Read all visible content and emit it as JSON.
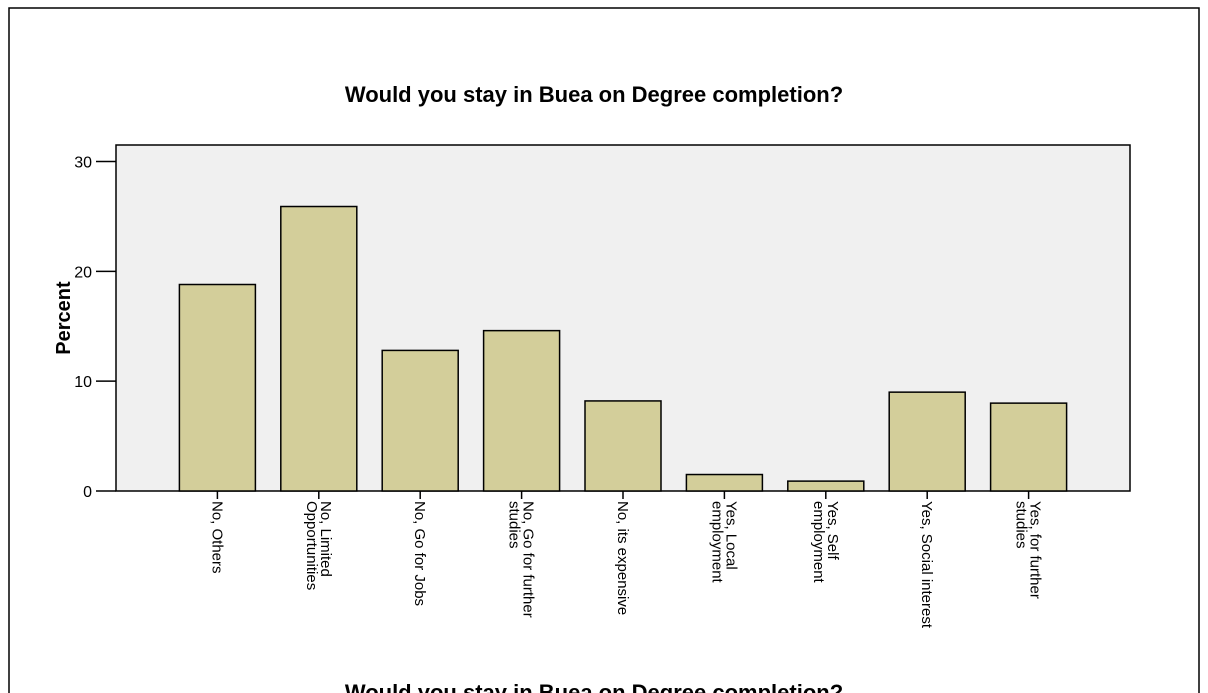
{
  "chart_data": {
    "type": "bar",
    "title": "Would you stay in Buea on Degree completion?",
    "y_label": "Percent",
    "x_label": "Would you stay in Buea on Degree completion?",
    "categories": [
      "No, Others",
      "No, Limited\nOpportunities",
      "No, Go for Jobs",
      "No, Go for further\nstudies",
      "No, its expensive",
      "Yes, Local\nemployment",
      "Yes, Self\nemployment",
      "Yes, Social interest",
      "Yes, for further\nstudies"
    ],
    "values": [
      18.8,
      25.9,
      12.8,
      14.6,
      8.2,
      1.5,
      0.9,
      9.0,
      8.0
    ],
    "color": "#d3ce9a",
    "ylim": [
      0,
      31.5
    ],
    "yticks": [
      0,
      10,
      20,
      30
    ],
    "grid": false
  }
}
